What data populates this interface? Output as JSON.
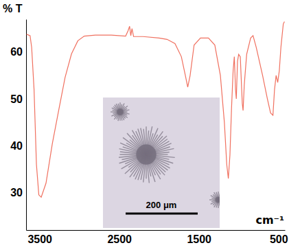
{
  "chart_data": {
    "type": "line",
    "x_label": "cm⁻¹",
    "y_label": "% T",
    "x": [
      3665,
      3620,
      3600,
      3570,
      3540,
      3510,
      3480,
      3420,
      3340,
      3260,
      3180,
      3100,
      3020,
      2940,
      2800,
      2600,
      2420,
      2390,
      2370,
      2355,
      2340,
      2320,
      2200,
      2000,
      1900,
      1800,
      1720,
      1670,
      1640,
      1610,
      1560,
      1480,
      1380,
      1300,
      1230,
      1180,
      1150,
      1130,
      1110,
      1090,
      1070,
      1055,
      1040,
      1030,
      1015,
      1000,
      980,
      955,
      945,
      930,
      900,
      850,
      820,
      780,
      700,
      640,
      600,
      570,
      550,
      530,
      510,
      490,
      470,
      440,
      425
    ],
    "values": [
      63.8,
      63.5,
      61,
      52,
      36,
      29.5,
      29,
      32,
      40.5,
      47.6,
      54.6,
      59.6,
      62.4,
      63.4,
      63.6,
      63.6,
      63.4,
      64.5,
      65.5,
      63.5,
      65,
      63.3,
      63.3,
      63,
      62.7,
      61.8,
      59,
      55,
      52.5,
      55,
      61.5,
      63,
      63,
      61.5,
      55,
      45,
      36,
      33,
      38,
      48,
      56,
      59,
      52,
      50,
      58,
      59.5,
      59,
      49,
      47.5,
      53,
      59.5,
      63,
      63.5,
      61,
      55,
      50,
      47,
      46.5,
      52,
      55,
      53.5,
      56,
      61,
      66,
      66.5
    ],
    "color": "#f0705f",
    "xlim": [
      3670,
      420
    ],
    "ylim": [
      22,
      67
    ],
    "xticks": [
      3500,
      2500,
      1500,
      500
    ],
    "yticks": [
      30,
      40,
      50,
      60
    ],
    "grid": false,
    "annotations": [
      {
        "text": "200 μm"
      }
    ]
  }
}
